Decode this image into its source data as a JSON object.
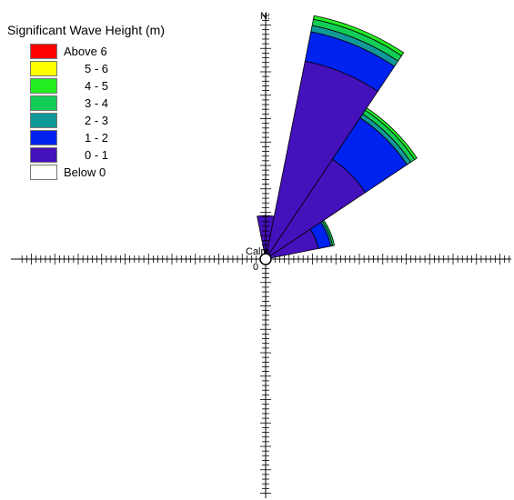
{
  "chart_data": {
    "type": "wind-rose",
    "title": "Significant Wave Height (m)",
    "north_label": "N:",
    "calm_label": "Calm",
    "zero_label": "0",
    "legend": [
      {
        "label": "Above 6",
        "color": "#ff0000"
      },
      {
        "label": "5 - 6",
        "color": "#ffff00"
      },
      {
        "label": "4 - 5",
        "color": "#22ee22"
      },
      {
        "label": "3 - 4",
        "color": "#11cc55"
      },
      {
        "label": "2 - 3",
        "color": "#119999"
      },
      {
        "label": "1 - 2",
        "color": "#0022ee"
      },
      {
        "label": "0 - 1",
        "color": "#4411bb"
      },
      {
        "label": "Below 0",
        "color": "#ffffff"
      }
    ],
    "sectors": [
      {
        "direction_deg": 0,
        "bins": [
          {
            "class": "0 - 1",
            "value": 48
          }
        ]
      },
      {
        "direction_deg": 22.5,
        "bins": [
          {
            "class": "0 - 1",
            "value": 222
          },
          {
            "class": "1 - 2",
            "value": 33
          },
          {
            "class": "2 - 3",
            "value": 7
          },
          {
            "class": "3 - 4",
            "value": 7
          },
          {
            "class": "4 - 5",
            "value": 4
          }
        ]
      },
      {
        "direction_deg": 45,
        "bins": [
          {
            "class": "0 - 1",
            "value": 132
          },
          {
            "class": "1 - 2",
            "value": 55
          },
          {
            "class": "2 - 3",
            "value": 5
          },
          {
            "class": "3 - 4",
            "value": 5
          },
          {
            "class": "4 - 5",
            "value": 3
          }
        ]
      },
      {
        "direction_deg": 67.5,
        "bins": [
          {
            "class": "0 - 1",
            "value": 59
          },
          {
            "class": "1 - 2",
            "value": 14
          },
          {
            "class": "2 - 3",
            "value": 2
          },
          {
            "class": "3 - 4",
            "value": 2
          }
        ]
      }
    ],
    "sector_width_deg": 22.5,
    "grid": false
  }
}
